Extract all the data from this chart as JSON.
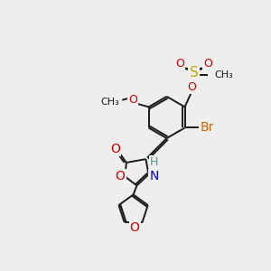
{
  "bg_color": "#eeeeee",
  "atom_colors": {
    "H": "#3a9a9a",
    "N": "#0000cc",
    "O": "#cc0000",
    "S": "#bbaa00",
    "Br": "#cc6600"
  },
  "bond_color": "#1a1a1a",
  "font_size": 9
}
